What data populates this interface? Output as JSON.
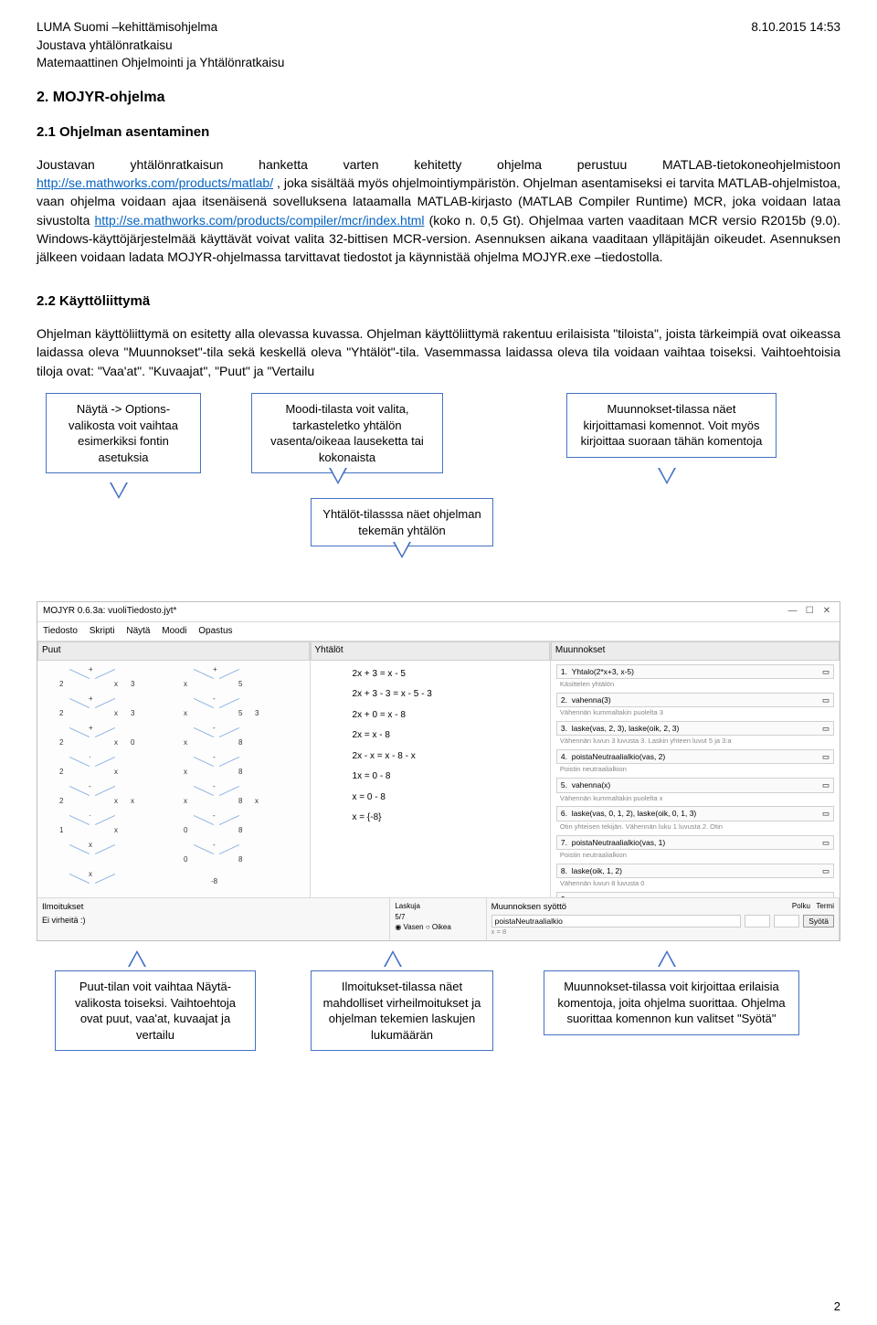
{
  "header": {
    "line1": "LUMA Suomi –kehittämisohjelma",
    "line2": "Joustava yhtälönratkaisu",
    "line3": "Matemaattinen Ohjelmointi ja Yhtälönratkaisu",
    "date": "8.10.2015 14:53"
  },
  "section2": {
    "title": "2. MOJYR-ohjelma",
    "sub1": "2.1 Ohjelman asentaminen",
    "para1a": "Joustavan yhtälönratkaisun hanketta varten kehitetty ohjelma perustuu MATLAB-tietokoneohjelmistoon ",
    "link1": "http://se.mathworks.com/products/matlab/",
    "para1b": " , joka sisältää myös ohjelmointiympäristön. Ohjelman asentamiseksi ei tarvita MATLAB-ohjelmistoa, vaan ohjelma voidaan ajaa itsenäisenä sovelluksena lataamalla MATLAB-kirjasto (MATLAB Compiler Runtime) MCR, joka voidaan lataa sivustolta ",
    "link2": "http://se.mathworks.com/products/compiler/mcr/index.html",
    "para1c": " (koko n. 0,5 Gt). Ohjelmaa varten vaaditaan MCR versio R2015b (9.0). Windows-käyttöjärjestelmää käyttävät voivat valita 32-bittisen MCR-version. Asennuksen aikana vaaditaan ylläpitäjän oikeudet. Asennuksen jälkeen voidaan ladata MOJYR-ohjelmassa tarvittavat tiedostot ja käynnistää ohjelma MOJYR.exe –tiedostolla.",
    "sub2": "2.2 Käyttöliittymä",
    "para2": "Ohjelman käyttöliittymä on esitetty alla olevassa kuvassa. Ohjelman käyttöliittymä rakentuu erilaisista \"tiloista\", joista tärkeimpiä ovat oikeassa laidassa oleva \"Muunnokset\"-tila sekä keskellä oleva \"Yhtälöt\"-tila. Vasemmassa laidassa oleva tila voidaan vaihtaa toiseksi. Vaihtoehtoisia tiloja ovat: \"Vaa'at\". \"Kuvaajat\", \"Puut\" ja \"Vertailu"
  },
  "callouts_top": {
    "c1": "Näytä -> Options-valikosta voit vaihtaa esimerkiksi fontin asetuksia",
    "c2": "Moodi-tilasta voit valita, tarkasteletko yhtälön vasenta/oikeaa lauseketta tai kokonaista",
    "c3": "Muunnokset-tilassa näet kirjoittamasi komennot. Voit myös kirjoittaa suoraan tähän komentoja",
    "c4": "Yhtälöt-tilasssa näet ohjelman tekemän yhtälön"
  },
  "screenshot": {
    "title": "MOJYR 0.6.3a: vuoliTiedosto.jyt*",
    "menu": [
      "Tiedosto",
      "Skripti",
      "Näytä",
      "Moodi",
      "Opastus"
    ],
    "panels": {
      "puut": "Puut",
      "yhtalot": "Yhtälöt",
      "muunnokset": "Muunnokset"
    },
    "equations": [
      "2x + 3  =  x - 5",
      "2x + 3 - 3  =  x - 5 - 3",
      "2x + 0  =  x - 8",
      "2x  =  x - 8",
      "2x - x  =  x - 8 - x",
      "1x  =  0 - 8",
      "x  =  0 - 8",
      "x  =  {-8}"
    ],
    "muunnokset": [
      {
        "cmd": "Yhtalo(2*x+3, x-5)",
        "sub": "Käsittelen yhtälön"
      },
      {
        "cmd": "vahenna(3)",
        "sub": "Vähennän kummaltakin puolelta 3"
      },
      {
        "cmd": "laske(vas, 2, 3), laske(oik, 2, 3)",
        "sub": "Vähennän luvun 3 luvusta 3. Laskin yhteen luvut 5 ja 3:a"
      },
      {
        "cmd": "poistaNeutraalialkio(vas, 2)",
        "sub": "Poistin neutraalialkion"
      },
      {
        "cmd": "vahenna(x)",
        "sub": "Vähennän kummaltakin puolelta x"
      },
      {
        "cmd": "laske(vas, 0, 1, 2), laske(oik, 0, 1, 3)",
        "sub": "Otin yhteisen tekijän. Vähennän luku 1 luvusta 2. Otin"
      },
      {
        "cmd": "poistaNeutraalialkio(vas, 1)",
        "sub": "Poistin neutraalialkion"
      },
      {
        "cmd": "laske(oik, 1, 2)",
        "sub": "Vähennän luvun 8 luvusta 0"
      }
    ],
    "footer": {
      "ilmo_title": "Ilmoitukset",
      "ilmo_text": "Ei virheitä :)",
      "laskuja": "Laskuja",
      "count": "5/7",
      "r1": "Vasen",
      "r2": "Oikea",
      "muun_title": "Muunnoksen syöttö",
      "lbl_polku": "Polku",
      "lbl_termi": "Termi",
      "input": "poistaNeutraalialkio",
      "btn": "Syötä"
    }
  },
  "callouts_bottom": {
    "c1": "Puut-tilan voit vaihtaa Näytä-valikosta toiseksi. Vaihtoehtoja ovat puut, vaa'at, kuvaajat ja vertailu",
    "c2": "Ilmoitukset-tilassa näet mahdolliset virheilmoitukset ja ohjelman tekemien laskujen lukumäärän",
    "c3": "Muunnokset-tilassa voit kirjoittaa erilaisia komentoja, joita ohjelma suorittaa. Ohjelma suorittaa komennon kun valitset \"Syötä\""
  },
  "pagenum": "2"
}
